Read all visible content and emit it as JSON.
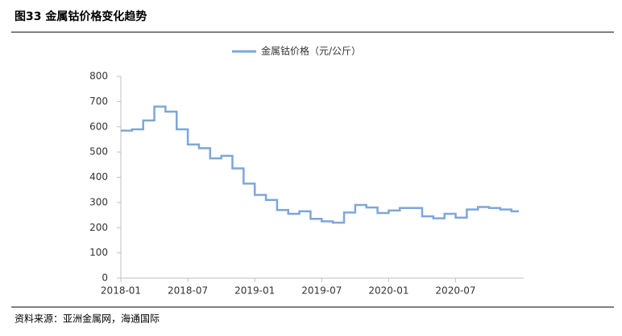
{
  "chart_data": {
    "type": "line",
    "title": "图33 金属钴价格变化趋势",
    "source": "资料来源：亚洲金属网，海通国际",
    "categories": [
      "2018-01",
      null,
      null,
      null,
      null,
      null,
      "2018-07",
      null,
      null,
      null,
      null,
      null,
      "2019-01",
      null,
      null,
      null,
      null,
      null,
      "2019-07",
      null,
      null,
      null,
      null,
      null,
      "2020-01",
      null,
      null,
      null,
      null,
      null,
      "2020-07",
      null,
      null,
      null,
      null,
      null
    ],
    "series": [
      {
        "name": "金属钴价格（元/公斤）",
        "color": "#7ea6d8",
        "values": [
          585,
          590,
          625,
          680,
          660,
          590,
          530,
          515,
          475,
          485,
          435,
          375,
          330,
          310,
          270,
          255,
          265,
          235,
          225,
          220,
          260,
          290,
          280,
          258,
          268,
          278,
          278,
          245,
          237,
          255,
          240,
          272,
          282,
          278,
          272,
          265
        ]
      }
    ],
    "step": true,
    "ylim": [
      0,
      800
    ],
    "yticks": [
      0,
      100,
      200,
      300,
      400,
      500,
      600,
      700,
      800
    ]
  }
}
